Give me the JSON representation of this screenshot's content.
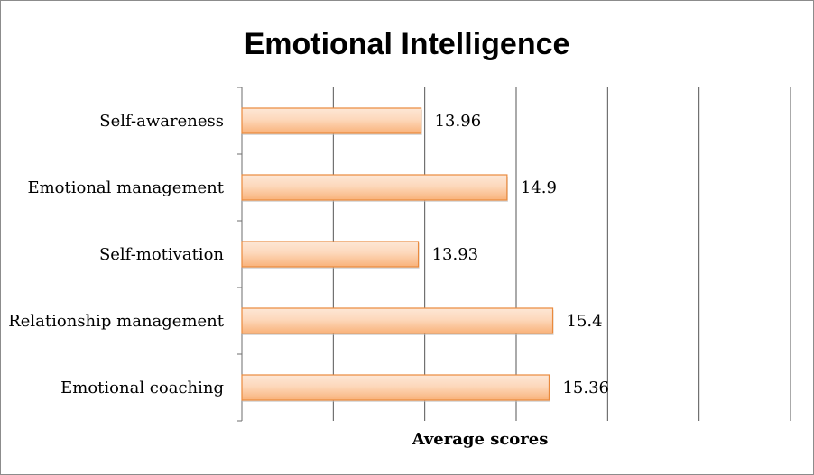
{
  "chart_data": {
    "type": "bar",
    "orientation": "horizontal",
    "title": "Emotional Intelligence",
    "xlabel": "Average scores",
    "ylabel": "",
    "categories": [
      "Self-awareness",
      "Emotional management",
      "Self-motivation",
      "Relationship management",
      "Emotional coaching"
    ],
    "values": [
      13.96,
      14.9,
      13.93,
      15.4,
      15.36
    ],
    "value_labels": [
      "13.96",
      "14.9",
      "13.93",
      "15.4",
      "15.36"
    ],
    "xlim": [
      12,
      18
    ],
    "grid": true,
    "tick_labels_shown": false,
    "bar_fill_top": "#fde7d6",
    "bar_fill_bottom": "#f9b27a",
    "bar_edge": "#ea8a3d",
    "gridline_color": "#555555"
  }
}
